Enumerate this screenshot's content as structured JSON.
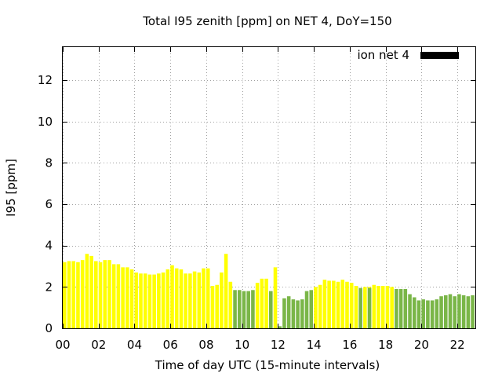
{
  "chart_data": {
    "type": "bar",
    "title": "Total I95 zenith [ppm] on NET 4, DoY=150",
    "xlabel": "Time of day UTC (15-minute intervals)",
    "ylabel": "I95 [ppm]",
    "xlim": [
      0,
      23
    ],
    "ylim": [
      0,
      13.6
    ],
    "xticks": [
      "00",
      "02",
      "04",
      "06",
      "08",
      "10",
      "12",
      "14",
      "16",
      "18",
      "20",
      "22"
    ],
    "xtick_values": [
      0,
      2,
      4,
      6,
      8,
      10,
      12,
      14,
      16,
      18,
      20,
      22
    ],
    "yticks": [
      "0",
      "2",
      "4",
      "6",
      "8",
      "10",
      "12"
    ],
    "ytick_values": [
      0,
      2,
      4,
      6,
      8,
      10,
      12
    ],
    "bar_width_hours": 0.2,
    "grid": true,
    "legend": {
      "label": "ion net 4",
      "position": "top-right",
      "color": "#000000"
    },
    "colors": {
      "yellow": "#ffff00",
      "green": "#7ab648"
    },
    "series": [
      {
        "color": "#ffff00",
        "x": [
          0.0,
          0.25,
          0.5,
          0.75,
          1.0,
          1.25,
          1.5,
          1.75,
          2.0,
          2.25,
          2.5,
          2.75,
          3.0,
          3.25,
          3.5,
          3.75,
          4.0,
          4.25,
          4.5,
          4.75,
          5.0,
          5.25,
          5.5,
          5.75,
          6.0,
          6.25,
          6.5,
          6.75,
          7.0,
          7.25,
          7.5,
          7.75,
          8.0,
          8.25,
          8.5,
          8.75,
          9.0,
          9.25,
          10.75,
          11.0,
          11.25,
          11.75,
          14.0,
          14.25,
          14.5,
          14.75,
          15.0,
          15.25,
          15.5,
          15.75,
          16.0,
          16.25,
          16.75,
          17.0,
          17.25,
          17.5,
          17.75,
          18.0,
          18.25
        ],
        "values": [
          3.2,
          3.25,
          3.25,
          3.2,
          3.3,
          3.6,
          3.5,
          3.25,
          3.2,
          3.3,
          3.3,
          3.1,
          3.1,
          2.95,
          2.95,
          2.85,
          2.7,
          2.65,
          2.65,
          2.6,
          2.6,
          2.65,
          2.7,
          2.85,
          3.05,
          2.9,
          2.85,
          2.65,
          2.65,
          2.75,
          2.7,
          2.9,
          2.9,
          2.05,
          2.1,
          2.7,
          3.6,
          2.25,
          2.2,
          2.4,
          2.4,
          2.95,
          2.0,
          2.1,
          2.35,
          2.3,
          2.3,
          2.25,
          2.35,
          2.25,
          2.2,
          2.05,
          2.0,
          2.0,
          2.1,
          2.05,
          2.05,
          2.05,
          2.0
        ]
      },
      {
        "color": "#7ab648",
        "x": [
          9.5,
          9.75,
          10.0,
          10.25,
          10.5,
          11.5,
          12.0,
          12.25,
          12.5,
          12.75,
          13.0,
          13.25,
          13.5,
          13.75,
          16.5,
          17.0,
          18.5,
          18.75,
          19.0,
          19.25,
          19.5,
          19.75,
          20.0,
          20.25,
          20.5,
          20.75,
          21.0,
          21.25,
          21.5,
          21.75,
          22.0,
          22.25,
          22.5,
          22.75
        ],
        "values": [
          1.85,
          1.85,
          1.8,
          1.8,
          1.85,
          1.8,
          0.1,
          1.45,
          1.55,
          1.4,
          1.35,
          1.4,
          1.8,
          1.85,
          1.95,
          1.95,
          1.9,
          1.9,
          1.9,
          1.65,
          1.5,
          1.35,
          1.4,
          1.35,
          1.35,
          1.4,
          1.55,
          1.6,
          1.65,
          1.55,
          1.65,
          1.6,
          1.55,
          1.6
        ]
      }
    ]
  }
}
